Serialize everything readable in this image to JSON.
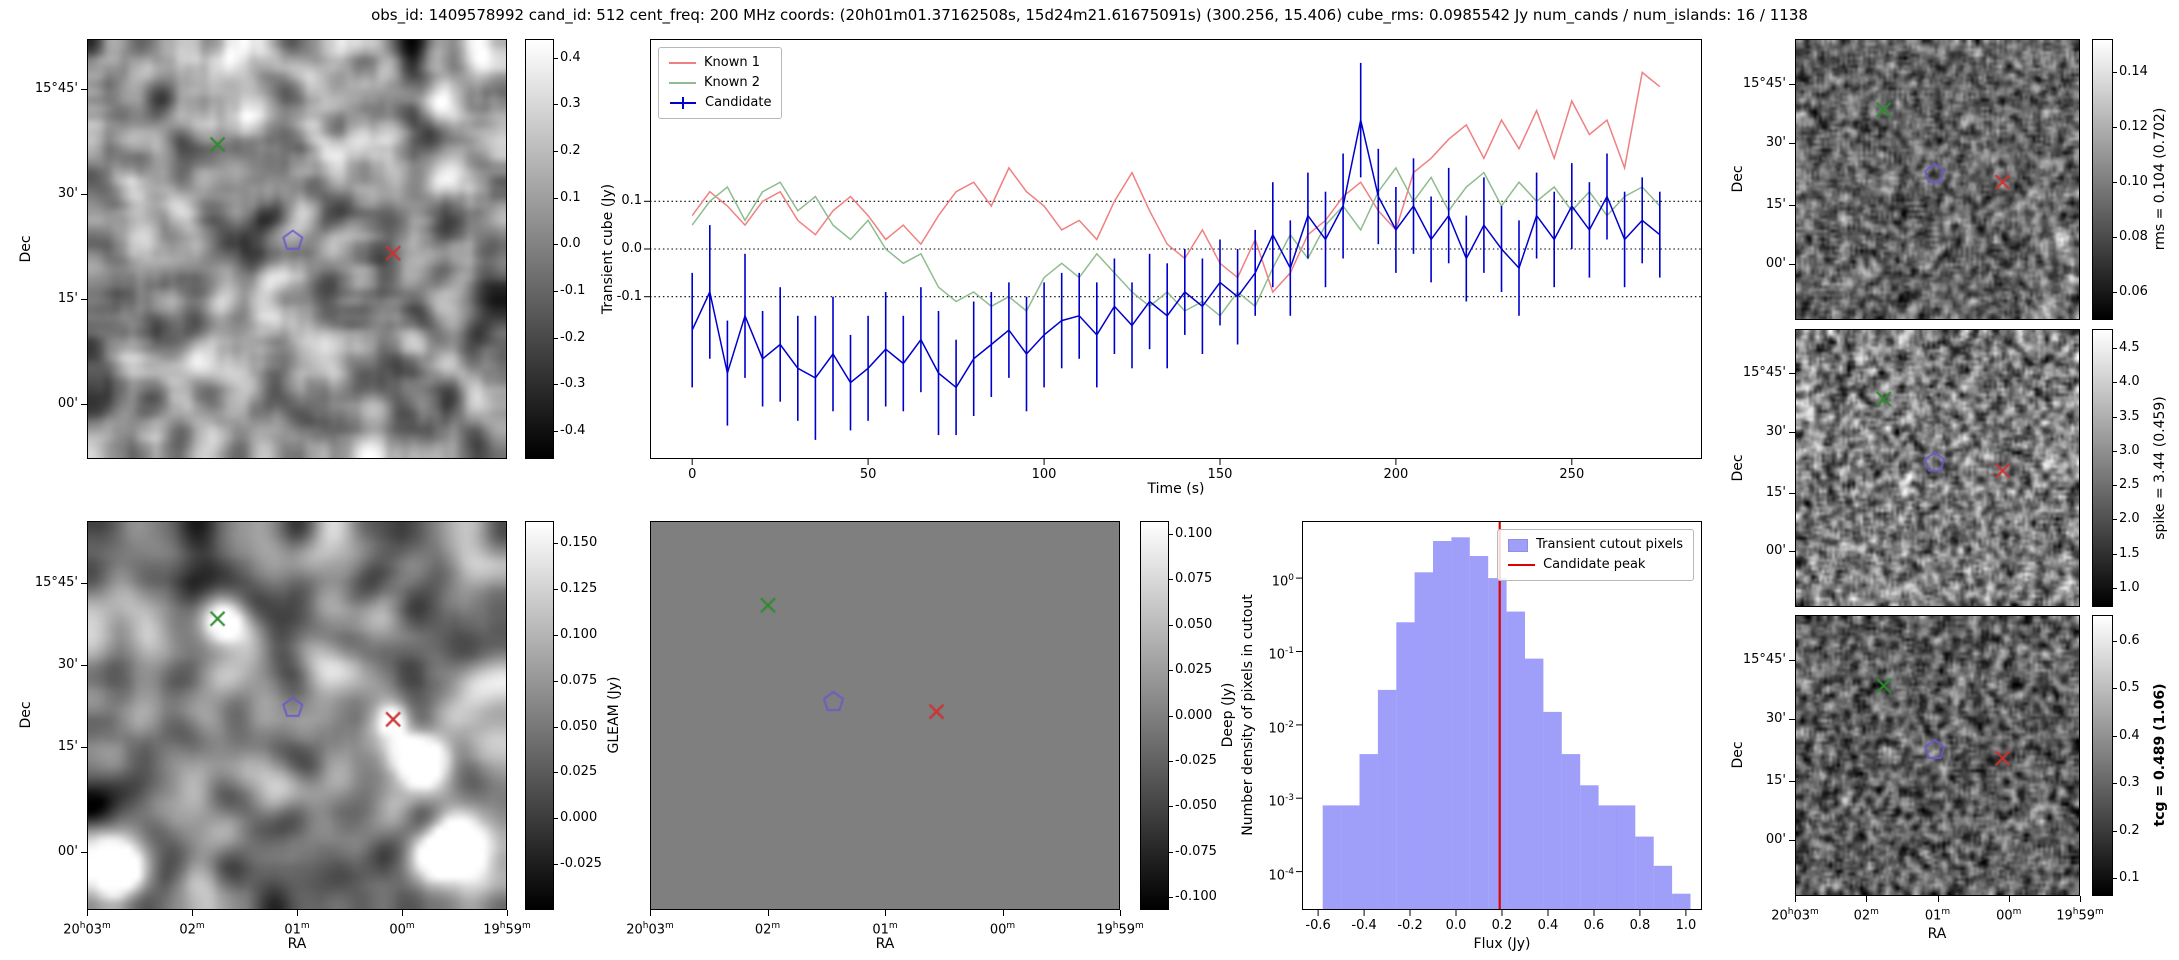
{
  "title": "obs_id: 1409578992 cand_id: 512 cent_freq: 200 MHz coords: (20h01m01.37162508s, 15d24m21.61675091s) (300.256, 15.406) cube_rms: 0.0985542 Jy num_cands / num_islands: 16 / 1138",
  "axis_labels": {
    "ra": "RA",
    "dec": "Dec",
    "flux": "Flux (Jy)"
  },
  "ra_ticks": [
    "20h03m",
    "02m",
    "01m",
    "00m",
    "19h59m"
  ],
  "dec_ticks": [
    "15°45'",
    "30'",
    "15'",
    "00'"
  ],
  "colors": {
    "deep_fill": "#7f7f7f",
    "figure_bg": "#ffffff"
  },
  "markers": {
    "green_x": {
      "shape": "x",
      "color": "#2e8b2e"
    },
    "red_x": {
      "shape": "x",
      "color": "#cc3333"
    },
    "candidate_pentagon": {
      "shape": "pentagon",
      "color": "#6a5acd"
    }
  },
  "marker_positions": {
    "std": {
      "green_x": [
        0.31,
        0.25
      ],
      "candidate_pentagon": [
        0.49,
        0.48
      ],
      "red_x": [
        0.73,
        0.51
      ]
    },
    "deep": {
      "green_x": [
        0.25,
        0.215
      ],
      "candidate_pentagon": [
        0.39,
        0.465
      ],
      "red_x": [
        0.61,
        0.49
      ]
    }
  },
  "colorbars": {
    "transient": {
      "label": "Transient cube (Jy)",
      "ticks": [
        "0.4",
        "0.3",
        "0.2",
        "0.1",
        "0.0",
        "-0.1",
        "-0.2",
        "-0.3",
        "-0.4"
      ],
      "vmin": -0.46,
      "vmax": 0.44
    },
    "gleam": {
      "label": "GLEAM (Jy)",
      "ticks": [
        "0.150",
        "0.125",
        "0.100",
        "0.075",
        "0.050",
        "0.025",
        "0.000",
        "-0.025"
      ],
      "vmin": -0.05,
      "vmax": 0.162
    },
    "deep": {
      "label": "Deep (Jy)",
      "ticks": [
        "0.100",
        "0.075",
        "0.050",
        "0.025",
        "0.000",
        "-0.025",
        "-0.050",
        "-0.075",
        "-0.100"
      ],
      "vmin": -0.107,
      "vmax": 0.107
    },
    "rms": {
      "label": "rms = 0.104 (0.702)",
      "ticks": [
        "0.14",
        "0.12",
        "0.10",
        "0.08",
        "0.06"
      ],
      "vmin": 0.05,
      "vmax": 0.152
    },
    "spike": {
      "label": "spike = 3.44 (0.459)",
      "ticks": [
        "4.5",
        "4.0",
        "3.5",
        "3.0",
        "2.5",
        "2.0",
        "1.5",
        "1.0"
      ],
      "vmin": 0.72,
      "vmax": 4.78
    },
    "tcg": {
      "label": "tcg = 0.489 (1.06)",
      "ticks": [
        "0.6",
        "0.5",
        "0.4",
        "0.3",
        "0.2",
        "0.1"
      ],
      "vmin": 0.062,
      "vmax": 0.655,
      "bold": true
    }
  },
  "chart_data": [
    {
      "type": "line",
      "title": "",
      "xlabel": "Time (s)",
      "ylabel": "Transient cube (Jy)",
      "xlim": [
        -12,
        287
      ],
      "ylim": [
        -0.44,
        0.44
      ],
      "x_ticks": [
        0,
        50,
        100,
        150,
        200,
        250
      ],
      "y_ticks": [
        0.1,
        0.0,
        -0.1
      ],
      "hlines": [
        0.1,
        0.0,
        -0.1
      ],
      "legend_position": "upper left",
      "x": [
        0,
        5,
        10,
        15,
        20,
        25,
        30,
        35,
        40,
        45,
        50,
        55,
        60,
        65,
        70,
        75,
        80,
        85,
        90,
        95,
        100,
        105,
        110,
        115,
        120,
        125,
        130,
        135,
        140,
        145,
        150,
        155,
        160,
        165,
        170,
        175,
        180,
        185,
        190,
        195,
        200,
        205,
        210,
        215,
        220,
        225,
        230,
        235,
        240,
        245,
        250,
        255,
        260,
        265,
        270,
        275
      ],
      "series": [
        {
          "name": "Known 1",
          "color": "#f08080",
          "values": [
            0.07,
            0.12,
            0.09,
            0.05,
            0.1,
            0.12,
            0.06,
            0.03,
            0.08,
            0.11,
            0.07,
            0.02,
            0.05,
            0.01,
            0.07,
            0.12,
            0.14,
            0.09,
            0.17,
            0.12,
            0.09,
            0.04,
            0.06,
            0.02,
            0.1,
            0.16,
            0.08,
            0.01,
            -0.02,
            0.04,
            -0.03,
            -0.06,
            0.02,
            -0.09,
            -0.05,
            0.03,
            0.06,
            0.11,
            0.14,
            0.08,
            0.04,
            0.16,
            0.19,
            0.23,
            0.26,
            0.19,
            0.27,
            0.21,
            0.29,
            0.19,
            0.31,
            0.24,
            0.27,
            0.17,
            0.37,
            0.34
          ]
        },
        {
          "name": "Known 2",
          "color": "#8fbc8f",
          "values": [
            0.05,
            0.1,
            0.13,
            0.06,
            0.12,
            0.14,
            0.08,
            0.11,
            0.05,
            0.02,
            0.06,
            0.0,
            -0.03,
            -0.01,
            -0.08,
            -0.11,
            -0.09,
            -0.12,
            -0.1,
            -0.13,
            -0.06,
            -0.03,
            -0.06,
            -0.01,
            -0.05,
            -0.09,
            -0.12,
            -0.09,
            -0.13,
            -0.11,
            -0.14,
            -0.09,
            -0.12,
            -0.04,
            0.03,
            -0.02,
            0.05,
            0.09,
            0.04,
            0.12,
            0.17,
            0.1,
            0.15,
            0.08,
            0.13,
            0.16,
            0.09,
            0.14,
            0.1,
            0.13,
            0.08,
            0.12,
            0.07,
            0.11,
            0.13,
            0.09
          ]
        },
        {
          "name": "Candidate",
          "color": "#0000cd",
          "values": [
            -0.17,
            -0.09,
            -0.26,
            -0.14,
            -0.23,
            -0.2,
            -0.25,
            -0.27,
            -0.22,
            -0.28,
            -0.25,
            -0.21,
            -0.24,
            -0.19,
            -0.26,
            -0.29,
            -0.23,
            -0.2,
            -0.17,
            -0.22,
            -0.18,
            -0.15,
            -0.14,
            -0.18,
            -0.12,
            -0.16,
            -0.11,
            -0.14,
            -0.09,
            -0.12,
            -0.07,
            -0.1,
            -0.05,
            0.03,
            -0.04,
            0.07,
            0.02,
            0.09,
            0.27,
            0.11,
            0.04,
            0.09,
            0.02,
            0.07,
            -0.02,
            0.05,
            0.0,
            -0.04,
            0.07,
            0.02,
            0.09,
            0.04,
            0.11,
            0.02,
            0.06,
            0.03
          ],
          "errors": [
            0.12,
            0.14,
            0.11,
            0.13,
            0.1,
            0.12,
            0.11,
            0.13,
            0.12,
            0.1,
            0.11,
            0.12,
            0.1,
            0.11,
            0.13,
            0.1,
            0.12,
            0.11,
            0.1,
            0.12,
            0.11,
            0.1,
            0.09,
            0.11,
            0.1,
            0.09,
            0.1,
            0.11,
            0.09,
            0.1,
            0.09,
            0.1,
            0.09,
            0.11,
            0.1,
            0.09,
            0.1,
            0.11,
            0.12,
            0.1,
            0.09,
            0.1,
            0.09,
            0.1,
            0.09,
            0.1,
            0.09,
            0.1,
            0.09,
            0.1,
            0.09,
            0.1,
            0.09,
            0.1,
            0.09,
            0.09
          ]
        }
      ]
    },
    {
      "type": "bar",
      "title": "",
      "xlabel": "Flux (Jy)",
      "ylabel": "Number density of pixels in cutout",
      "yscale": "log",
      "xlim": [
        -0.67,
        1.07
      ],
      "ylim": [
        3e-05,
        6
      ],
      "x_ticks": [
        -0.6,
        -0.4,
        -0.2,
        0.0,
        0.2,
        0.4,
        0.6,
        0.8,
        1.0
      ],
      "y_ticks": [
        1,
        0.1,
        0.01,
        0.001,
        0.0001
      ],
      "legend": [
        "Transient cutout pixels",
        "Candidate peak"
      ],
      "legend_position": "upper right",
      "candidate_peak": 0.19,
      "bar_color": "rgba(80,80,245,0.55)",
      "peak_color": "#dd0000",
      "bin_width": 0.08,
      "bin_centers": [
        -0.54,
        -0.46,
        -0.38,
        -0.3,
        -0.22,
        -0.14,
        -0.06,
        0.02,
        0.1,
        0.18,
        0.26,
        0.34,
        0.42,
        0.5,
        0.58,
        0.66,
        0.74,
        0.82,
        0.9,
        0.98
      ],
      "values": [
        0.0008,
        0.0008,
        0.004,
        0.03,
        0.25,
        1.2,
        3.2,
        3.6,
        2.0,
        1.0,
        0.35,
        0.08,
        0.015,
        0.004,
        0.0015,
        0.0008,
        0.0008,
        0.0003,
        0.00012,
        5e-05
      ]
    }
  ]
}
